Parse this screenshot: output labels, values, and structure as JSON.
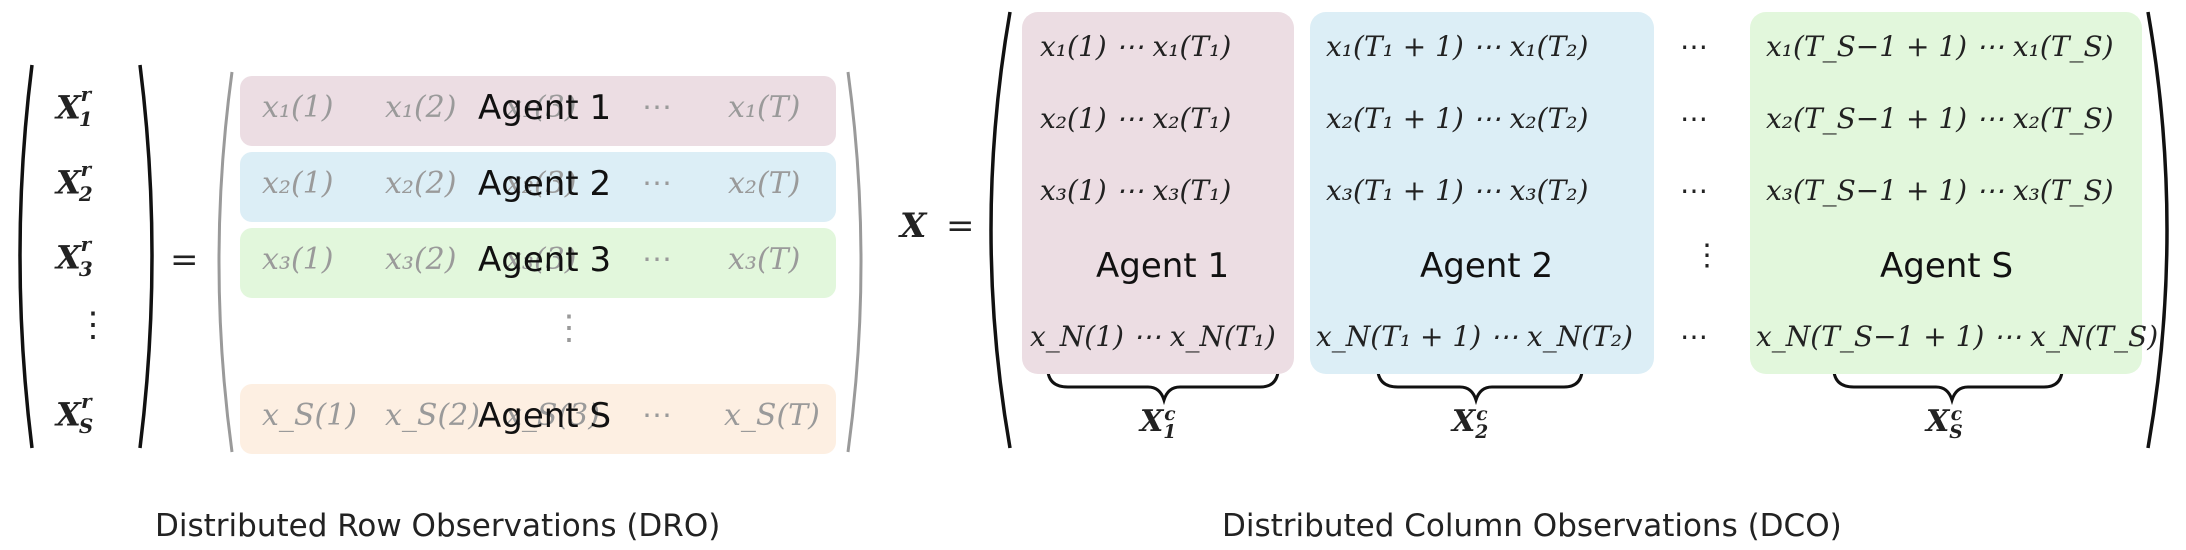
{
  "dro": {
    "left_vector": [
      "X",
      "X",
      "X",
      "⋮",
      "X"
    ],
    "left_sub": [
      "1",
      "2",
      "3",
      "",
      "S"
    ],
    "left_sup": [
      "r",
      "r",
      "r",
      "",
      "r"
    ],
    "equals": "=",
    "rows": [
      {
        "agent": "Agent 1",
        "cells": [
          "x₁(1)",
          "x₁(2)",
          "x₁(3)",
          "⋯",
          "x₁(T)"
        ],
        "color": "#ecdde3"
      },
      {
        "agent": "Agent 2",
        "cells": [
          "x₂(1)",
          "x₂(2)",
          "x₂(3)",
          "⋯",
          "x₂(T)"
        ],
        "color": "#dceef6"
      },
      {
        "agent": "Agent 3",
        "cells": [
          "x₃(1)",
          "x₃(2)",
          "x₃(3)",
          "⋯",
          "x₃(T)"
        ],
        "color": "#e2f7dc"
      },
      {
        "agent": "Agent S",
        "cells": [
          "x_S(1)",
          "x_S(2)",
          "x_S(3)",
          "⋯",
          "x_S(T)"
        ],
        "color": "#fdefe2"
      }
    ],
    "vdots": "⋮",
    "caption": "Distributed Row Observations (DRO)"
  },
  "dco": {
    "lhs": "X",
    "equals": "=",
    "blocks": [
      {
        "agent": "Agent 1",
        "color": "#ecdde3",
        "rows": [
          "x₁(1) ⋯ x₁(T₁)",
          "x₂(1) ⋯ x₂(T₁)",
          "x₃(1) ⋯ x₃(T₁)",
          "x_N(1) ⋯ x_N(T₁)"
        ],
        "brace_label": "X",
        "brace_sub": "1",
        "brace_sup": "c"
      },
      {
        "agent": "Agent 2",
        "color": "#dceef6",
        "rows": [
          "x₁(T₁ + 1) ⋯ x₁(T₂)",
          "x₂(T₁ + 1) ⋯ x₂(T₂)",
          "x₃(T₁ + 1) ⋯ x₃(T₂)",
          "x_N(T₁ + 1) ⋯ x_N(T₂)"
        ],
        "brace_label": "X",
        "brace_sub": "2",
        "brace_sup": "c"
      },
      {
        "agent": "Agent S",
        "color": "#e2f7dc",
        "rows": [
          "x₁(T_S−1 + 1) ⋯ x₁(T_S)",
          "x₂(T_S−1 + 1) ⋯ x₂(T_S)",
          "x₃(T_S−1 + 1) ⋯ x₃(T_S)",
          "x_N(T_S−1 + 1) ⋯ x_N(T_S)"
        ],
        "brace_label": "X",
        "brace_sub": "S",
        "brace_sup": "c"
      }
    ],
    "middle_dots": [
      "⋯",
      "⋯",
      "⋯",
      "⋮",
      "⋯"
    ],
    "caption": "Distributed Column Observations (DCO)"
  }
}
